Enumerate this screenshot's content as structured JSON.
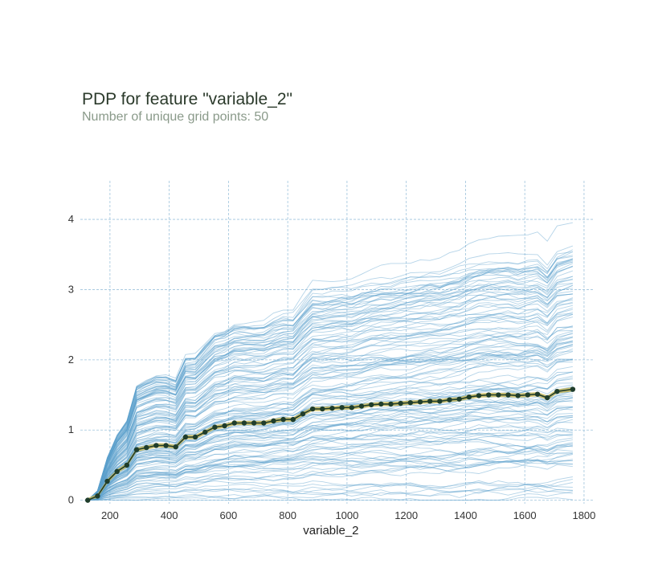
{
  "title": "PDP for feature \"variable_2\"",
  "subtitle": "Number of unique grid points: 50",
  "chart_data": {
    "type": "line",
    "title": "PDP for feature \"variable_2\"",
    "subtitle": "Number of unique grid points: 50",
    "xlabel": "variable_2",
    "ylabel": "",
    "xlim": [
      100,
      1830
    ],
    "ylim": [
      -0.05,
      4.55
    ],
    "xticks": [
      200,
      400,
      600,
      800,
      1000,
      1200,
      1400,
      1600,
      1800
    ],
    "yticks": [
      0,
      1,
      2,
      3,
      4
    ],
    "grid": true,
    "colors": {
      "ice_lines": "#5b9fcb",
      "pdp_line": "#1f3d2b",
      "pdp_band": "#c9b95a",
      "grid": "#9ec3dc"
    },
    "series": [
      {
        "x": [
          125,
          158,
          191,
          224,
          257,
          290,
          323,
          356,
          389,
          422,
          455,
          488,
          521,
          554,
          587,
          620,
          653,
          686,
          719,
          752,
          785,
          818,
          851,
          884,
          917,
          950,
          983,
          1016,
          1049,
          1082,
          1115,
          1148,
          1181,
          1214,
          1247,
          1280,
          1313,
          1346,
          1379,
          1412,
          1445,
          1478,
          1511,
          1544,
          1577,
          1610,
          1643,
          1676,
          1709,
          1762
        ],
        "values": [
          0.0,
          0.06,
          0.27,
          0.41,
          0.5,
          0.72,
          0.75,
          0.78,
          0.78,
          0.76,
          0.9,
          0.9,
          0.97,
          1.04,
          1.06,
          1.1,
          1.1,
          1.1,
          1.1,
          1.13,
          1.15,
          1.15,
          1.23,
          1.3,
          1.3,
          1.31,
          1.32,
          1.32,
          1.34,
          1.36,
          1.37,
          1.37,
          1.38,
          1.39,
          1.4,
          1.41,
          1.41,
          1.43,
          1.44,
          1.47,
          1.49,
          1.5,
          1.5,
          1.5,
          1.49,
          1.5,
          1.51,
          1.46,
          1.55,
          1.58
        ]
      }
    ]
  }
}
